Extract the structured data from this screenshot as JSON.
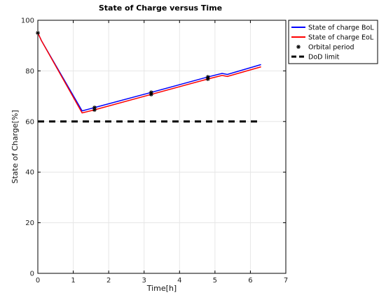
{
  "chart_data": {
    "type": "line",
    "title": "State of Charge versus Time",
    "xlabel": "Time[h]",
    "ylabel": "State of Charge[%]",
    "xlim": [
      0,
      7
    ],
    "ylim": [
      0,
      100
    ],
    "xticks": [
      0,
      1,
      2,
      3,
      4,
      5,
      6,
      7
    ],
    "yticks": [
      0,
      20,
      40,
      60,
      80,
      100
    ],
    "grid": true,
    "legend_position": "outside-top-right",
    "series": [
      {
        "name": "State of charge BoL",
        "color": "#0000ff",
        "x": [
          0,
          0.1,
          1.25,
          1.6,
          3.2,
          4.8,
          5.2,
          5.35,
          6.3
        ],
        "y": [
          95,
          92,
          64.2,
          65.5,
          71.5,
          77.6,
          79.0,
          78.6,
          82.5
        ]
      },
      {
        "name": "State of charge EoL",
        "color": "#ff0000",
        "x": [
          0,
          0.1,
          1.25,
          1.6,
          3.2,
          4.8,
          5.2,
          5.35,
          6.3
        ],
        "y": [
          95,
          92,
          63.4,
          64.6,
          70.7,
          76.8,
          78.2,
          77.8,
          81.6
        ]
      },
      {
        "name": "Orbital period",
        "color": "#000000",
        "marker": "asterisk",
        "x": [
          0,
          1.6,
          1.6,
          3.2,
          3.2,
          4.8,
          4.8
        ],
        "y": [
          95,
          65.5,
          64.6,
          71.5,
          70.7,
          77.6,
          76.8
        ]
      },
      {
        "name": "DoD limit",
        "color": "#000000",
        "style": "dashed",
        "x": [
          0,
          6.3
        ],
        "y": [
          60,
          60
        ]
      }
    ]
  }
}
